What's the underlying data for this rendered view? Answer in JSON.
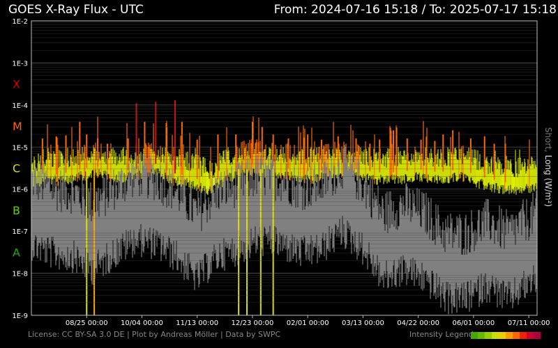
{
  "header": {
    "title": "GOES X-Ray Flux - UTC",
    "range": "From: 2024-07-16 15:18  /  To: 2025-07-17 15:18"
  },
  "footer": {
    "credits": "License: CC BY-SA 3.0 DE | Plot by Andreas Möller | Data by SWPC",
    "legend_label": "Intensity Legend"
  },
  "legend_colors": [
    "#44aa00",
    "#66bb00",
    "#99cc00",
    "#ccdd00",
    "#eecc00",
    "#ff9900",
    "#ff6600",
    "#ee2200",
    "#cc0033",
    "#aa0044"
  ],
  "chart_data": {
    "type": "line",
    "title": "GOES X-Ray Flux - UTC",
    "ylabel_short": "Short",
    "ylabel_sep": ", ",
    "ylabel_long": "Long (W/m²)",
    "yscale": "log",
    "ylim": [
      1e-09,
      0.01
    ],
    "y_ticks": [
      "1E-2",
      "1E-3",
      "1E-4",
      "1E-5",
      "1E-6",
      "1E-7",
      "1E-8",
      "1E-9"
    ],
    "flare_classes": [
      {
        "label": "X",
        "value": 0.0001,
        "color": "#cc0000"
      },
      {
        "label": "M",
        "value": 1e-05,
        "color": "#ff6600"
      },
      {
        "label": "C",
        "value": 1e-06,
        "color": "#dddd00"
      },
      {
        "label": "B",
        "value": 1e-07,
        "color": "#66cc00"
      },
      {
        "label": "A",
        "value": 1e-08,
        "color": "#22aa00"
      }
    ],
    "x_ticks": [
      "08/25 00:00",
      "10/04 00:00",
      "11/13 00:00",
      "12/23 00:00",
      "02/01 00:00",
      "03/13 00:00",
      "04/22 00:00",
      "06/01 00:00",
      "07/11 00:00"
    ],
    "grid": true,
    "series": [
      {
        "name": "Long (W/m²)",
        "color_by_class": true,
        "baseline": [
          [
            0,
            1.5e-06
          ],
          [
            10,
            2.5e-06
          ],
          [
            20,
            2.2e-06
          ],
          [
            35,
            3e-06
          ],
          [
            50,
            3.5e-06
          ],
          [
            60,
            2.5e-06
          ],
          [
            75,
            3e-06
          ],
          [
            90,
            4e-06
          ],
          [
            100,
            2.5e-06
          ],
          [
            115,
            2e-06
          ],
          [
            130,
            1.3e-06
          ],
          [
            145,
            3e-06
          ],
          [
            160,
            4e-06
          ],
          [
            175,
            3.5e-06
          ],
          [
            190,
            3e-06
          ],
          [
            205,
            2.5e-06
          ],
          [
            220,
            3.5e-06
          ],
          [
            235,
            3e-06
          ],
          [
            250,
            2.5e-06
          ],
          [
            265,
            2.5e-06
          ],
          [
            280,
            3e-06
          ],
          [
            295,
            2.5e-06
          ],
          [
            310,
            3e-06
          ],
          [
            325,
            2e-06
          ],
          [
            340,
            1.5e-06
          ],
          [
            350,
            1.4e-06
          ],
          [
            365,
            1.6e-06
          ]
        ],
        "peaks": [
          [
            8,
            1.6e-05
          ],
          [
            18,
            1.8e-05
          ],
          [
            25,
            1.9e-05
          ],
          [
            35,
            4e-05
          ],
          [
            40,
            2e-05
          ],
          [
            48,
            1.6e-05
          ],
          [
            55,
            1.2e-05
          ],
          [
            70,
            1.6e-05
          ],
          [
            76,
            0.00011
          ],
          [
            82,
            4e-05
          ],
          [
            90,
            0.00012
          ],
          [
            98,
            3e-05
          ],
          [
            104,
            0.00013
          ],
          [
            109,
            4e-05
          ],
          [
            120,
            1.5e-05
          ],
          [
            135,
            2e-05
          ],
          [
            148,
            2e-05
          ],
          [
            160,
            4e-05
          ],
          [
            167,
            3e-05
          ],
          [
            175,
            2e-05
          ],
          [
            186,
            1.6e-05
          ],
          [
            200,
            2e-05
          ],
          [
            210,
            1.5e-05
          ],
          [
            222,
            1.8e-05
          ],
          [
            235,
            1.6e-05
          ],
          [
            245,
            1.2e-05
          ],
          [
            252,
            1.5e-05
          ],
          [
            262,
            2.5e-05
          ],
          [
            272,
            1.6e-05
          ],
          [
            282,
            1.5e-05
          ],
          [
            292,
            1.4e-05
          ],
          [
            298,
            2e-05
          ],
          [
            305,
            2.5e-05
          ],
          [
            318,
            1.6e-05
          ],
          [
            328,
            1.8e-05
          ],
          [
            335,
            1.2e-05
          ],
          [
            343,
            1.2e-05
          ]
        ]
      },
      {
        "name": "Short",
        "color": "#808080",
        "baseline": [
          [
            0,
            2e-07
          ],
          [
            15,
            1.2e-07
          ],
          [
            30,
            1e-07
          ],
          [
            45,
            5e-08
          ],
          [
            60,
            1.2e-07
          ],
          [
            75,
            2.5e-07
          ],
          [
            90,
            2e-07
          ],
          [
            105,
            1e-07
          ],
          [
            120,
            3e-08
          ],
          [
            135,
            1e-07
          ],
          [
            150,
            1.5e-07
          ],
          [
            165,
            2.5e-07
          ],
          [
            180,
            2e-07
          ],
          [
            195,
            1.2e-07
          ],
          [
            210,
            1.5e-07
          ],
          [
            225,
            4e-07
          ],
          [
            240,
            1.5e-07
          ],
          [
            255,
            3e-08
          ],
          [
            270,
            5e-08
          ],
          [
            285,
            3e-08
          ],
          [
            300,
            1e-08
          ],
          [
            315,
            1e-08
          ],
          [
            330,
            2e-08
          ],
          [
            345,
            1e-08
          ],
          [
            365,
            3e-08
          ]
        ]
      }
    ],
    "dropouts": [
      {
        "x": 40,
        "color": "#dddd00"
      },
      {
        "x": 45.5,
        "color": "#ffaa00"
      },
      {
        "x": 150,
        "color": "#dddd00"
      },
      {
        "x": 156,
        "color": "#dddd00"
      },
      {
        "x": 166,
        "color": "#dddd00"
      },
      {
        "x": 175,
        "color": "#dddd00"
      }
    ]
  }
}
